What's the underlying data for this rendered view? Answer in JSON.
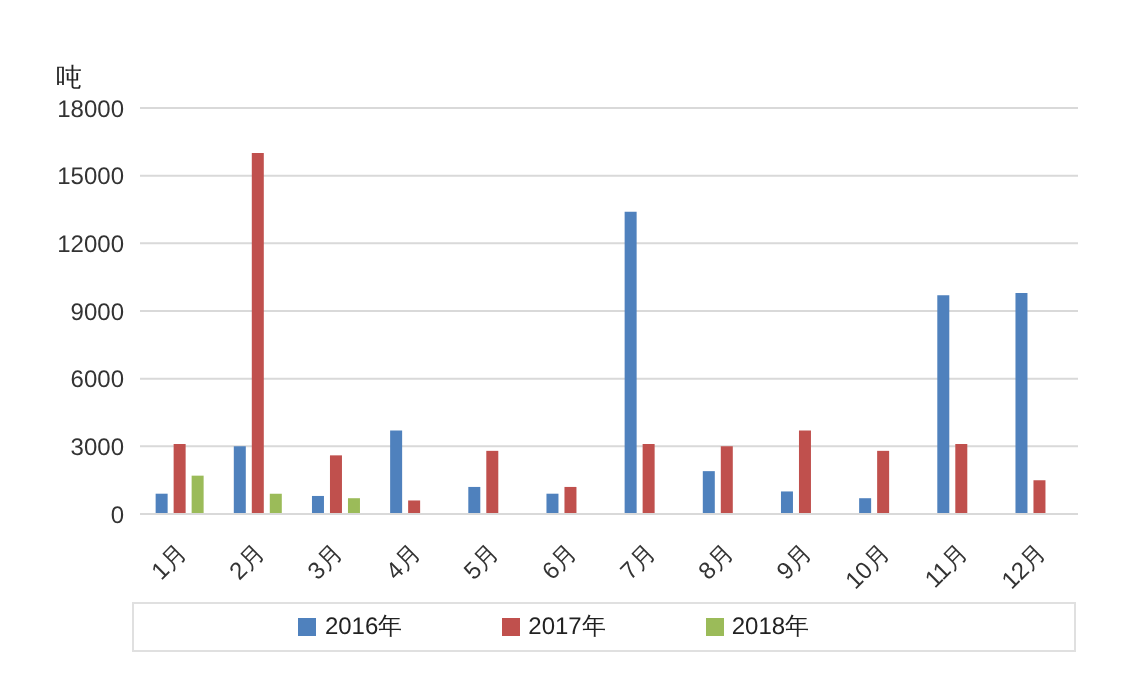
{
  "chart_data": {
    "type": "bar",
    "ylabel": "吨",
    "categories": [
      "1月",
      "2月",
      "3月",
      "4月",
      "5月",
      "6月",
      "7月",
      "8月",
      "9月",
      "10月",
      "11月",
      "12月"
    ],
    "series": [
      {
        "name": "2016年",
        "color": "#4f81bd",
        "values": [
          900,
          3000,
          800,
          3700,
          1200,
          900,
          13400,
          1900,
          1000,
          700,
          9700,
          9800
        ]
      },
      {
        "name": "2017年",
        "color": "#c0504d",
        "values": [
          3100,
          16000,
          2600,
          600,
          2800,
          1200,
          3100,
          3000,
          3700,
          2800,
          3100,
          1500
        ]
      },
      {
        "name": "2018年",
        "color": "#9bbb59",
        "values": [
          1700,
          900,
          700,
          null,
          null,
          null,
          null,
          null,
          null,
          null,
          null,
          null
        ]
      }
    ],
    "ylim": [
      0,
      18000
    ],
    "yticks": [
      0,
      3000,
      6000,
      9000,
      12000,
      15000,
      18000
    ],
    "grid": "y",
    "legend": "bottom"
  }
}
